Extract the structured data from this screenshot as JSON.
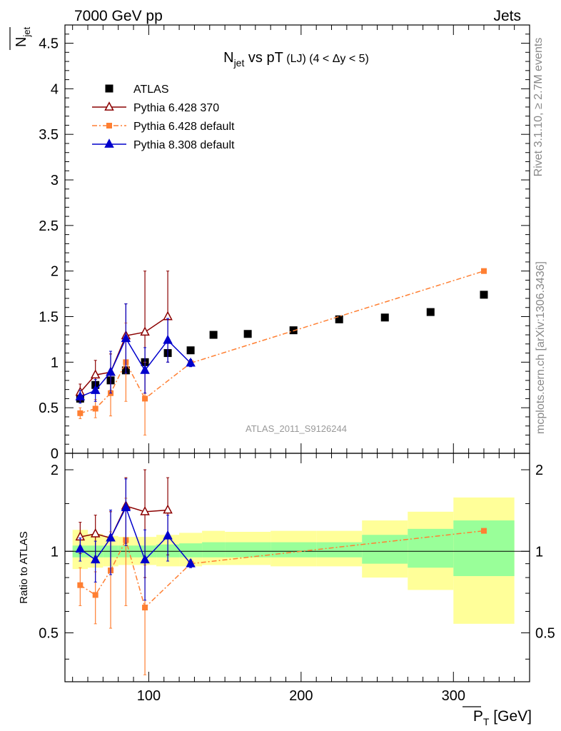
{
  "header": {
    "left": "7000 GeV pp",
    "right": "Jets"
  },
  "side": {
    "rivet": "Rivet 3.1.10, ≥ 2.7M events",
    "mcplots": "mcplots.cern.ch [arXiv:1306.3436]"
  },
  "chart_data": [
    {
      "type": "scatter",
      "title_parts": {
        "main": "N",
        "sub": "jet",
        "mid": " vs pT",
        "paren": " (LJ) (4 < Δy < 5)"
      },
      "ylabel": {
        "main": "N",
        "sub": "jet"
      },
      "analysis_label": "ATLAS_2011_S9126244",
      "xlim": [
        45,
        350
      ],
      "ylim": [
        0,
        4.7
      ],
      "x_ticks": [
        100,
        200,
        300
      ],
      "y_ticks": [
        0,
        0.5,
        1,
        1.5,
        2,
        2.5,
        3,
        3.5,
        4,
        4.5
      ],
      "y_tick_labels": [
        "0",
        "0.5",
        "1",
        "1.5",
        "2",
        "2.5",
        "3",
        "3.5",
        "4",
        "4.5"
      ],
      "legend_position": "top-left",
      "colors": {
        "atlas": "#000000",
        "p6_370": "#8b0000",
        "p6_default": "#ff7f32",
        "p8": "#0000cc"
      },
      "series": [
        {
          "name": "ATLAS",
          "marker": "square",
          "color": "#000000",
          "x": [
            55,
            65,
            75,
            85,
            97.5,
            112.5,
            127.5,
            142.5,
            165,
            195,
            225,
            255,
            285,
            320
          ],
          "y": [
            0.6,
            0.75,
            0.8,
            0.91,
            1.0,
            1.1,
            1.13,
            1.3,
            1.31,
            1.35,
            1.47,
            1.49,
            1.55,
            1.74
          ],
          "yerr": [
            0.02,
            0.02,
            0.02,
            0.02,
            0.02,
            0.02,
            0.02,
            0.02,
            0.02,
            0.02,
            0.02,
            0.02,
            0.02,
            0.03
          ]
        },
        {
          "name": "Pythia 6.428 370",
          "marker": "open-triangle",
          "color": "#8b0000",
          "linestyle": "solid",
          "x": [
            55,
            65,
            75,
            85,
            97.5,
            112.5
          ],
          "y": [
            0.67,
            0.86,
            0.89,
            1.29,
            1.33,
            1.5
          ],
          "yerr": [
            0.09,
            0.16,
            0.2,
            0.35,
            0.67,
            0.5
          ]
        },
        {
          "name": "Pythia 6.428 default",
          "marker": "square",
          "color": "#ff7f32",
          "linestyle": "dashdot",
          "x": [
            55,
            65,
            75,
            85,
            97.5,
            127.5,
            320
          ],
          "y": [
            0.44,
            0.49,
            0.66,
            1.0,
            0.6,
            0.99,
            2.0
          ],
          "yerr": [
            0.06,
            0.1,
            0.25,
            0.43,
            0.4,
            0.03,
            0.02
          ]
        },
        {
          "name": "Pythia 8.308 default",
          "marker": "triangle",
          "color": "#0000cc",
          "linestyle": "solid",
          "x": [
            55,
            65,
            75,
            85,
            97.5,
            112.5,
            127.5
          ],
          "y": [
            0.62,
            0.69,
            0.89,
            1.26,
            0.91,
            1.24,
            0.99
          ],
          "yerr": [
            0.07,
            0.12,
            0.23,
            0.38,
            0.25,
            0.24,
            0.04
          ]
        }
      ]
    },
    {
      "type": "scatter",
      "ylabel": "Ratio to ATLAS",
      "xlabel_parts": {
        "main": "P",
        "sub": "T",
        "unit": " [GeV]"
      },
      "xlim": [
        45,
        350
      ],
      "ylim": [
        0.33,
        2.3
      ],
      "log_y": true,
      "x_ticks": [
        100,
        200,
        300
      ],
      "x_tick_labels": [
        "100",
        "200",
        "300"
      ],
      "y_ticks": [
        0.5,
        1,
        2
      ],
      "y_tick_labels": [
        "0.5",
        "1",
        "2"
      ],
      "bands": {
        "edges": [
          50,
          60,
          70,
          80,
          90,
          105,
          120,
          135,
          150,
          180,
          210,
          240,
          270,
          300,
          340
        ],
        "green_lo": [
          0.95,
          0.95,
          0.95,
          0.95,
          0.95,
          0.95,
          0.95,
          0.95,
          0.95,
          0.95,
          0.95,
          0.9,
          0.87,
          0.81
        ],
        "green_hi": [
          1.05,
          1.05,
          1.05,
          1.05,
          1.05,
          1.06,
          1.07,
          1.08,
          1.08,
          1.08,
          1.08,
          1.15,
          1.21,
          1.3
        ],
        "yellow_lo": [
          0.86,
          0.87,
          0.88,
          0.89,
          0.89,
          0.88,
          0.88,
          0.89,
          0.89,
          0.88,
          0.88,
          0.8,
          0.72,
          0.54
        ],
        "yellow_hi": [
          1.2,
          1.16,
          1.14,
          1.13,
          1.13,
          1.15,
          1.17,
          1.19,
          1.18,
          1.19,
          1.19,
          1.3,
          1.4,
          1.58
        ],
        "green": "#99ff99",
        "yellow": "#ffff99"
      },
      "series": [
        {
          "name": "Pythia 6.428 370",
          "marker": "open-triangle",
          "color": "#8b0000",
          "linestyle": "solid",
          "x": [
            55,
            65,
            75,
            85,
            97.5,
            112.5
          ],
          "y": [
            1.13,
            1.16,
            1.12,
            1.47,
            1.4,
            1.42
          ],
          "yerr": [
            0.15,
            0.2,
            0.28,
            0.4,
            0.6,
            0.45
          ]
        },
        {
          "name": "Pythia 6.428 default",
          "marker": "square",
          "color": "#ff7f32",
          "linestyle": "dashdot",
          "x": [
            55,
            65,
            75,
            85,
            97.5,
            127.5,
            320
          ],
          "y": [
            0.75,
            0.69,
            0.85,
            1.1,
            0.62,
            0.9,
            1.19
          ],
          "yerr": [
            0.12,
            0.15,
            0.33,
            0.47,
            0.27,
            0.02,
            0.02
          ]
        },
        {
          "name": "Pythia 8.308 default",
          "marker": "triangle",
          "color": "#0000cc",
          "linestyle": "solid",
          "x": [
            55,
            65,
            75,
            85,
            97.5,
            112.5,
            127.5
          ],
          "y": [
            1.02,
            0.93,
            1.12,
            1.45,
            0.93,
            1.14,
            0.9
          ],
          "yerr": [
            0.1,
            0.16,
            0.3,
            0.4,
            0.27,
            0.22,
            0.03
          ]
        }
      ]
    }
  ]
}
